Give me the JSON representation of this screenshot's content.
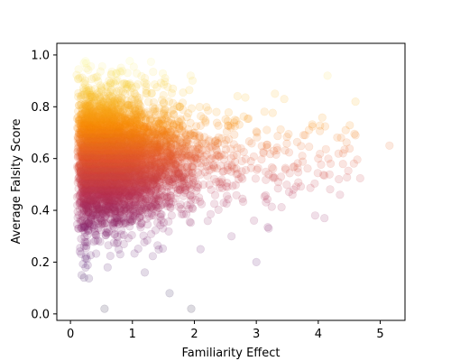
{
  "chart_data": {
    "type": "scatter",
    "title": "",
    "xlabel": "Familiarity Effect",
    "ylabel": "Average Falsity Score",
    "xlim": [
      -0.22,
      5.4
    ],
    "ylim": [
      -0.025,
      1.045
    ],
    "xticks": [
      0,
      1,
      2,
      3,
      4,
      5
    ],
    "yticks": [
      0.0,
      0.2,
      0.4,
      0.6,
      0.8,
      1.0
    ],
    "xtick_labels": [
      "0",
      "1",
      "2",
      "3",
      "4",
      "5"
    ],
    "ytick_labels": [
      "0.0",
      "0.2",
      "0.4",
      "0.6",
      "0.8",
      "1.0"
    ],
    "grid": false,
    "legend": "none",
    "colormap": "inferno",
    "color_encoding": "point color follows the y value (Average Falsity Score); dark purple near 0.35, orange near 0.75, pale yellow near 1.0",
    "alpha": 0.15,
    "colors": {
      "low": "#4b0c6b",
      "mid": "#c43c4e",
      "high": "#f89511",
      "top": "#fcffa4"
    },
    "summary": {
      "dense_core_x_range": [
        0.1,
        2.2
      ],
      "dense_core_y_range": [
        0.35,
        0.85
      ],
      "sparse_tail_x_max": 5.2
    },
    "outliers": [
      {
        "x": 0.55,
        "y": 0.02
      },
      {
        "x": 1.95,
        "y": 0.02
      },
      {
        "x": 1.6,
        "y": 0.08
      },
      {
        "x": 0.18,
        "y": 0.15
      },
      {
        "x": 0.22,
        "y": 0.14
      },
      {
        "x": 3.0,
        "y": 0.2
      },
      {
        "x": 1.2,
        "y": 0.16
      },
      {
        "x": 5.15,
        "y": 0.65
      },
      {
        "x": 4.6,
        "y": 0.82
      },
      {
        "x": 4.6,
        "y": 0.69
      },
      {
        "x": 4.15,
        "y": 0.92
      },
      {
        "x": 4.4,
        "y": 0.62
      },
      {
        "x": 4.35,
        "y": 0.46
      },
      {
        "x": 4.1,
        "y": 0.37
      },
      {
        "x": 3.95,
        "y": 0.38
      },
      {
        "x": 3.85,
        "y": 0.71
      },
      {
        "x": 4.2,
        "y": 0.58
      },
      {
        "x": 3.2,
        "y": 0.33
      },
      {
        "x": 3.45,
        "y": 0.83
      },
      {
        "x": 3.6,
        "y": 0.48
      },
      {
        "x": 4.0,
        "y": 0.6
      },
      {
        "x": 3.3,
        "y": 0.85
      },
      {
        "x": 2.6,
        "y": 0.3
      },
      {
        "x": 0.6,
        "y": 0.18
      },
      {
        "x": 2.1,
        "y": 0.25
      }
    ]
  }
}
